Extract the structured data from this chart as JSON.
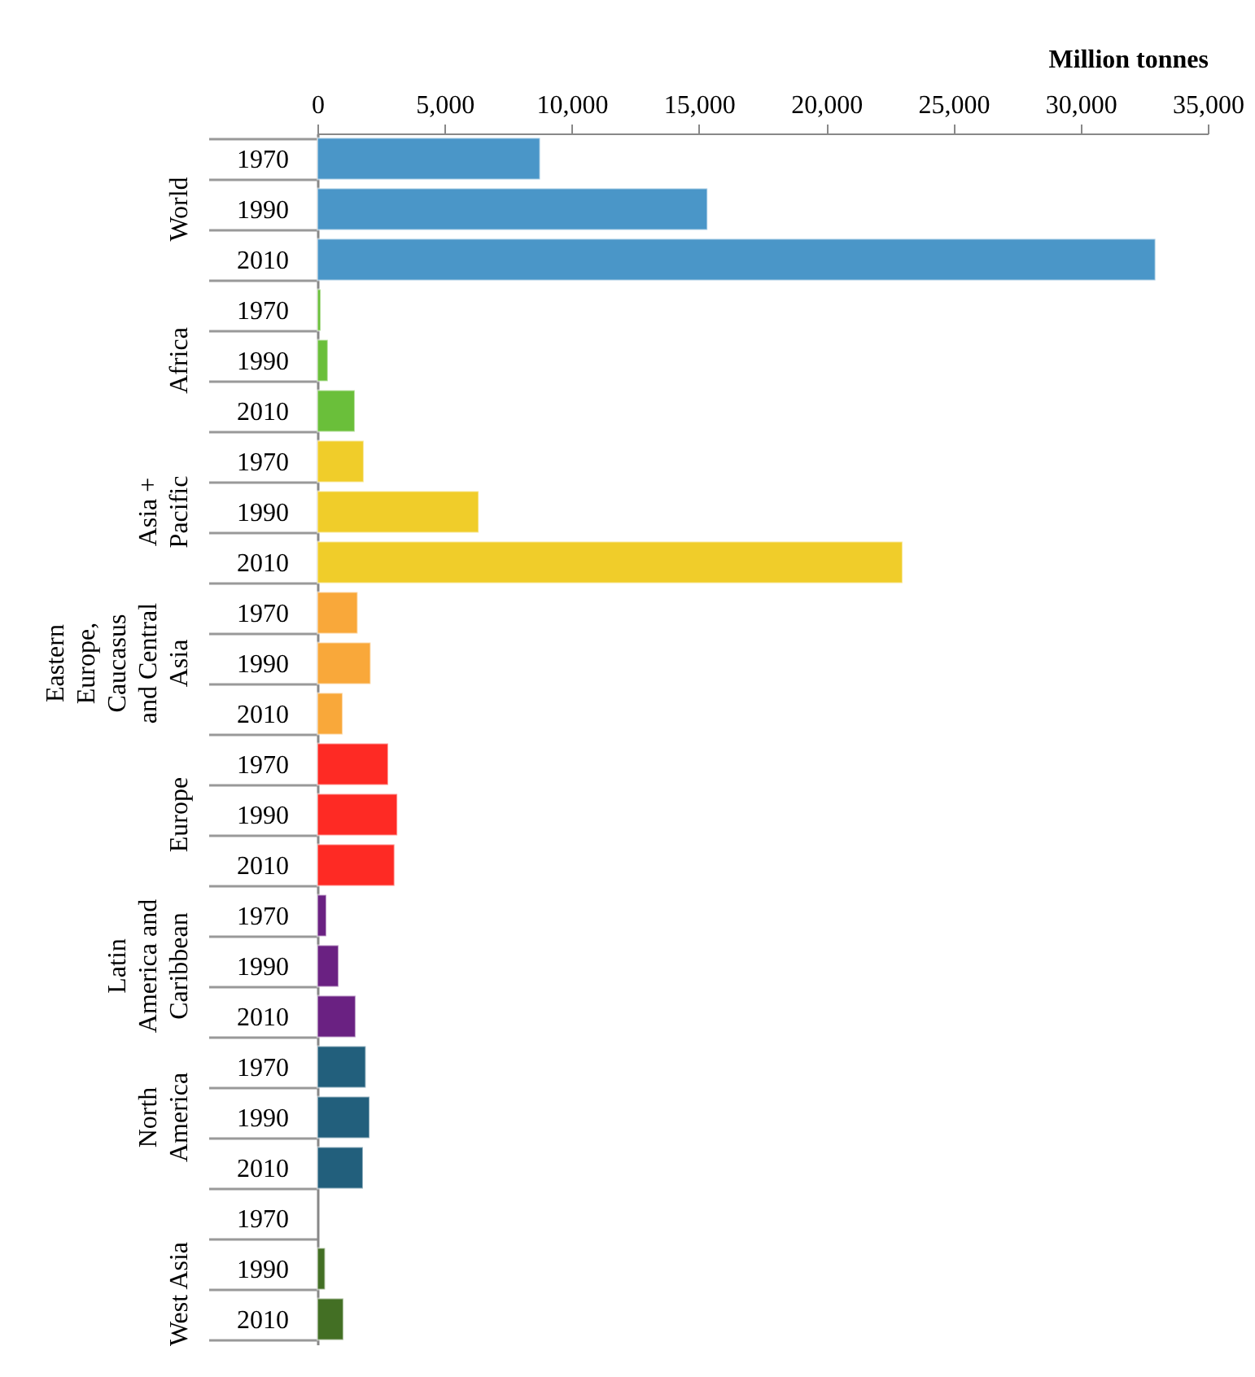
{
  "chart_data": {
    "type": "bar",
    "orientation": "horizontal",
    "xlabel": "Million tonnes",
    "categories": [
      "1970",
      "1990",
      "2010",
      "1970",
      "1990",
      "2010",
      "1970",
      "1990",
      "2010",
      "1970",
      "1990",
      "2010",
      "1970",
      "1990",
      "2010",
      "1970",
      "1990",
      "2010",
      "1970",
      "1990",
      "2010",
      "1970",
      "1990",
      "2010"
    ],
    "series": [
      {
        "name": "World",
        "color": "#4a96c8",
        "values": [
          8750,
          15330,
          32940,
          null,
          null,
          null,
          null,
          null,
          null,
          null,
          null,
          null,
          null,
          null,
          null,
          null,
          null,
          null,
          null,
          null,
          null,
          null,
          null,
          null
        ]
      },
      {
        "name": "Africa",
        "color": "#6abf3a",
        "values": [
          null,
          null,
          null,
          130,
          410,
          1470,
          null,
          null,
          null,
          null,
          null,
          null,
          null,
          null,
          null,
          null,
          null,
          null,
          null,
          null,
          null,
          null,
          null,
          null
        ]
      },
      {
        "name": "Asia + Pacific",
        "color": "#f0cd2a",
        "values": [
          null,
          null,
          null,
          null,
          null,
          null,
          1820,
          6340,
          23000,
          null,
          null,
          null,
          null,
          null,
          null,
          null,
          null,
          null,
          null,
          null,
          null,
          null,
          null,
          null
        ]
      },
      {
        "name": "Eastern Europe, Caucasus and Central Asia",
        "color": "#f9a83a",
        "values": [
          null,
          null,
          null,
          null,
          null,
          null,
          null,
          null,
          null,
          1580,
          2090,
          990,
          null,
          null,
          null,
          null,
          null,
          null,
          null,
          null,
          null,
          null,
          null,
          null
        ]
      },
      {
        "name": "Europe",
        "color": "#fe2a24",
        "values": [
          null,
          null,
          null,
          null,
          null,
          null,
          null,
          null,
          null,
          null,
          null,
          null,
          2780,
          3140,
          3030,
          null,
          null,
          null,
          null,
          null,
          null,
          null,
          null,
          null
        ]
      },
      {
        "name": "Latin America and Caribbean",
        "color": "#6a2182",
        "values": [
          null,
          null,
          null,
          null,
          null,
          null,
          null,
          null,
          null,
          null,
          null,
          null,
          null,
          null,
          null,
          350,
          830,
          1500,
          null,
          null,
          null,
          null,
          null,
          null
        ]
      },
      {
        "name": "North America",
        "color": "#225f7c",
        "values": [
          null,
          null,
          null,
          null,
          null,
          null,
          null,
          null,
          null,
          null,
          null,
          null,
          null,
          null,
          null,
          null,
          null,
          null,
          1900,
          2050,
          1790,
          null,
          null,
          null
        ]
      },
      {
        "name": "West Asia",
        "color": "#436f24",
        "values": [
          null,
          null,
          null,
          null,
          null,
          null,
          null,
          null,
          null,
          null,
          null,
          null,
          null,
          null,
          null,
          null,
          null,
          null,
          null,
          null,
          null,
          null,
          300,
          1020
        ]
      }
    ],
    "xlim": [
      0,
      35000
    ],
    "xticks": [
      {
        "value": 0,
        "label": "0"
      },
      {
        "value": 5000,
        "label": "5,000"
      },
      {
        "value": 10000,
        "label": "10,000"
      },
      {
        "value": 15000,
        "label": "15,000"
      },
      {
        "value": 20000,
        "label": "20,000"
      },
      {
        "value": 25000,
        "label": "25,000"
      },
      {
        "value": 30000,
        "label": "30,000"
      },
      {
        "value": 35000,
        "label": "35,000"
      }
    ],
    "grid": false,
    "legend": false
  }
}
